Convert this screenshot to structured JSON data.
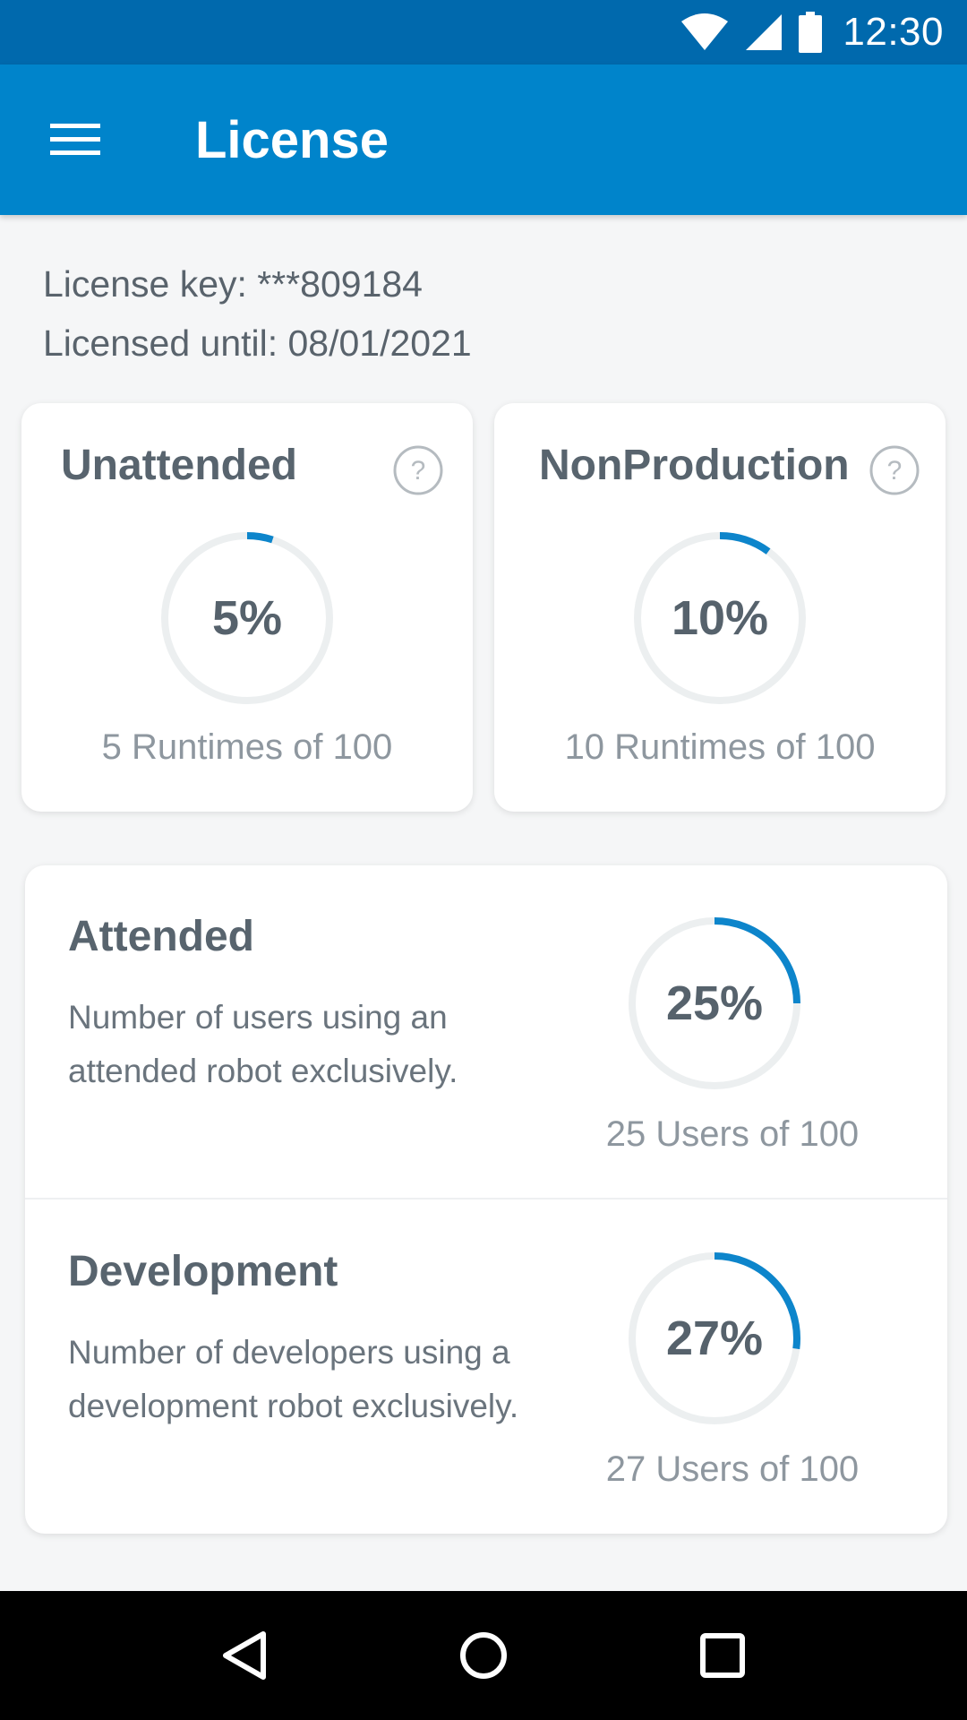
{
  "status_bar": {
    "time": "12:30",
    "icons": [
      "wifi-icon",
      "signal-icon",
      "battery-icon"
    ]
  },
  "app_bar": {
    "title": "License",
    "menu_icon": "hamburger-menu-icon"
  },
  "license": {
    "key_text": "License key: ***809184",
    "until_text": "Licensed until: 08/01/2021"
  },
  "cards": {
    "unattended": {
      "title": "Unattended",
      "percent_label": "5%",
      "percent": 5,
      "caption": "5 Runtimes of 100"
    },
    "nonproduction": {
      "title": "NonProduction",
      "percent_label": "10%",
      "percent": 10,
      "caption": "10 Runtimes of 100"
    }
  },
  "sections": {
    "attended": {
      "title": "Attended",
      "description": "Number of users using an attended robot exclusively.",
      "percent_label": "25%",
      "percent": 25,
      "caption": "25 Users of 100"
    },
    "development": {
      "title": "Development",
      "description": "Number of developers using a development robot exclusively.",
      "percent_label": "27%",
      "percent": 27,
      "caption": "27 Users of 100"
    }
  },
  "colors": {
    "status_bar": "#0069ad",
    "app_bar": "#0084cb",
    "gauge_track": "#eceff0",
    "gauge_fill": "#0d85cb"
  },
  "nav_bar": {
    "icons": [
      "back-icon",
      "home-icon",
      "recents-icon"
    ]
  }
}
